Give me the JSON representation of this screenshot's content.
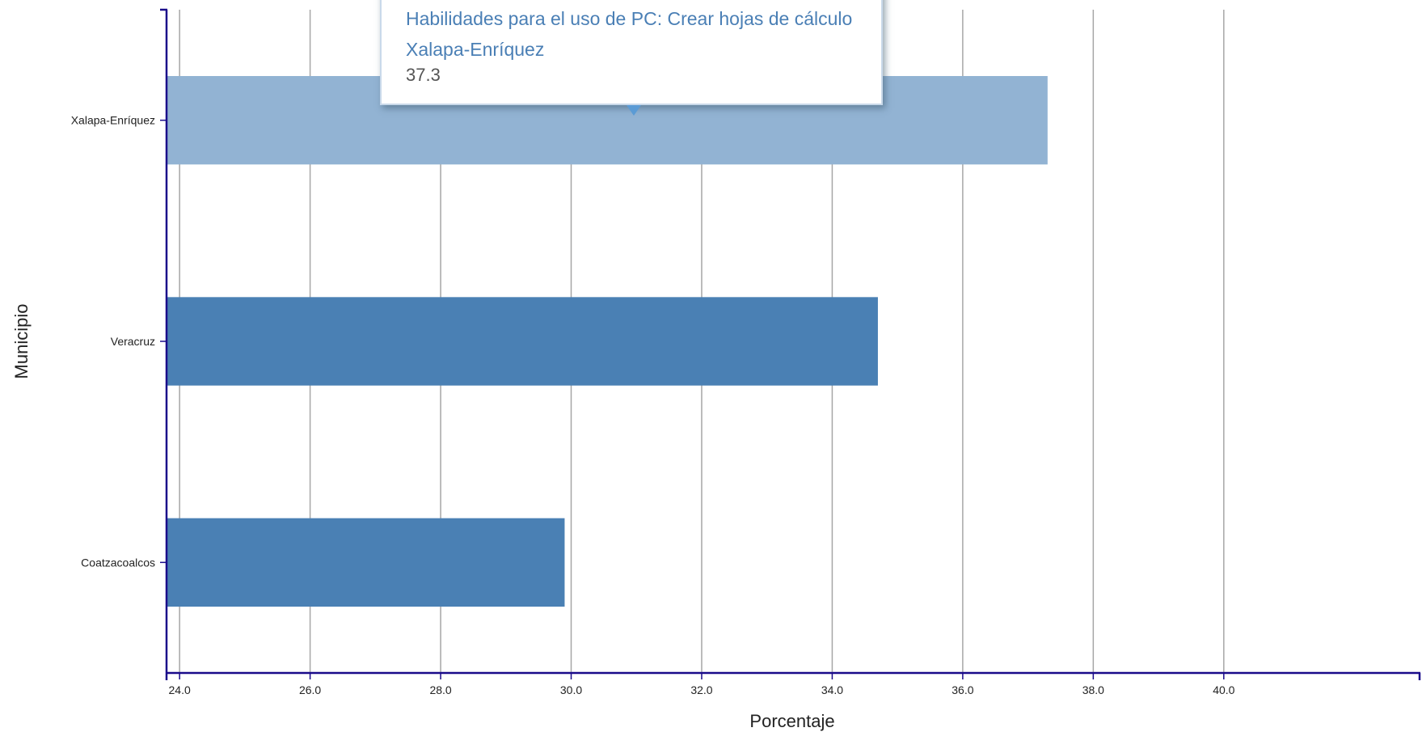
{
  "colors": {
    "bar": "#4a80b4",
    "bar_highlight": "#92b3d3",
    "axis": "#1a0b8a",
    "grid": "#a6a6a6",
    "tooltip_text": "#4a7fb5"
  },
  "tooltip": {
    "series": "Habilidades para el uso de PC: Crear hojas de cálculo",
    "category": "Xalapa-Enríquez",
    "value": "37.3"
  },
  "chart_data": {
    "type": "bar",
    "orientation": "horizontal",
    "categories": [
      "Xalapa-Enríquez",
      "Veracruz",
      "Coatzacoalcos"
    ],
    "series": [
      {
        "name": "Habilidades para el uso de PC: Crear hojas de cálculo",
        "values": [
          37.3,
          34.7,
          29.9
        ]
      }
    ],
    "highlighted_category": "Xalapa-Enríquez",
    "xlabel": "Porcentaje",
    "ylabel": "Municipio",
    "xlim": [
      23.8,
      43.0
    ],
    "xticks": [
      "24.0",
      "26.0",
      "28.0",
      "30.0",
      "32.0",
      "34.0",
      "36.0",
      "38.0",
      "40.0"
    ],
    "grid": "vertical"
  }
}
